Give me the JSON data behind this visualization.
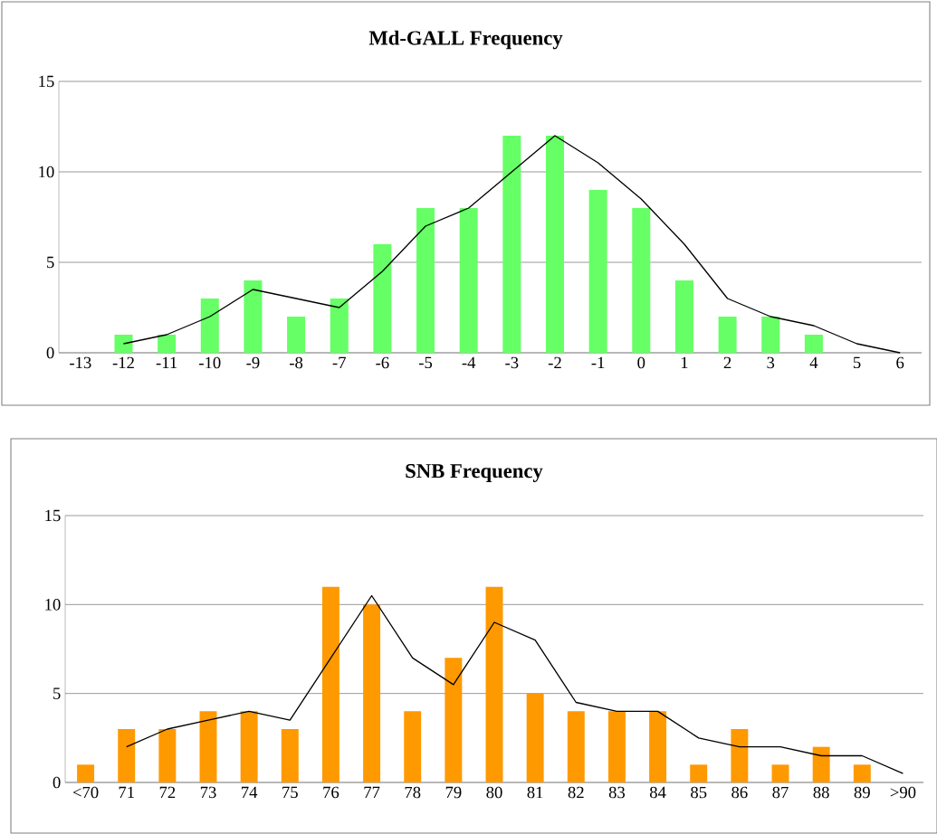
{
  "chart_data": [
    {
      "type": "bar",
      "title": "Md-GALL Frequency",
      "categories": [
        "-13",
        "-12",
        "-11",
        "-10",
        "-9",
        "-8",
        "-7",
        "-6",
        "-5",
        "-4",
        "-3",
        "-2",
        "-1",
        "0",
        "1",
        "2",
        "3",
        "4",
        "5",
        "6"
      ],
      "series": [
        {
          "type": "bar",
          "color": "#66ff66",
          "values": [
            0,
            1,
            1,
            3,
            4,
            2,
            3,
            6,
            8,
            8,
            12,
            12,
            9,
            8,
            4,
            2,
            2,
            1,
            0,
            0
          ]
        },
        {
          "type": "line",
          "color": "#000000",
          "values": [
            null,
            0.5,
            1,
            2,
            3.5,
            3,
            2.5,
            4.5,
            7,
            8,
            10,
            12,
            10.5,
            8.5,
            6,
            3,
            2,
            1.5,
            0.5,
            0
          ]
        }
      ],
      "ylim": [
        0,
        15
      ],
      "yticks": [
        0,
        5,
        10,
        15
      ],
      "grid": "y"
    },
    {
      "type": "bar",
      "title": "SNB Frequency",
      "categories": [
        "<70",
        "71",
        "72",
        "73",
        "74",
        "75",
        "76",
        "77",
        "78",
        "79",
        "80",
        "81",
        "82",
        "83",
        "84",
        "85",
        "86",
        "87",
        "88",
        "89",
        ">90"
      ],
      "series": [
        {
          "type": "bar",
          "color": "#ff9900",
          "values": [
            1,
            3,
            3,
            4,
            4,
            3,
            11,
            10,
            4,
            7,
            11,
            5,
            4,
            4,
            4,
            1,
            3,
            1,
            2,
            1,
            0
          ]
        },
        {
          "type": "line",
          "color": "#000000",
          "values": [
            null,
            2,
            3,
            3.5,
            4,
            3.5,
            7,
            10.5,
            7,
            5.5,
            9,
            8,
            4.5,
            4,
            4,
            2.5,
            2,
            2,
            1.5,
            1.5,
            0.5
          ]
        }
      ],
      "ylim": [
        0,
        15
      ],
      "yticks": [
        0,
        5,
        10,
        15
      ],
      "grid": "y"
    }
  ]
}
